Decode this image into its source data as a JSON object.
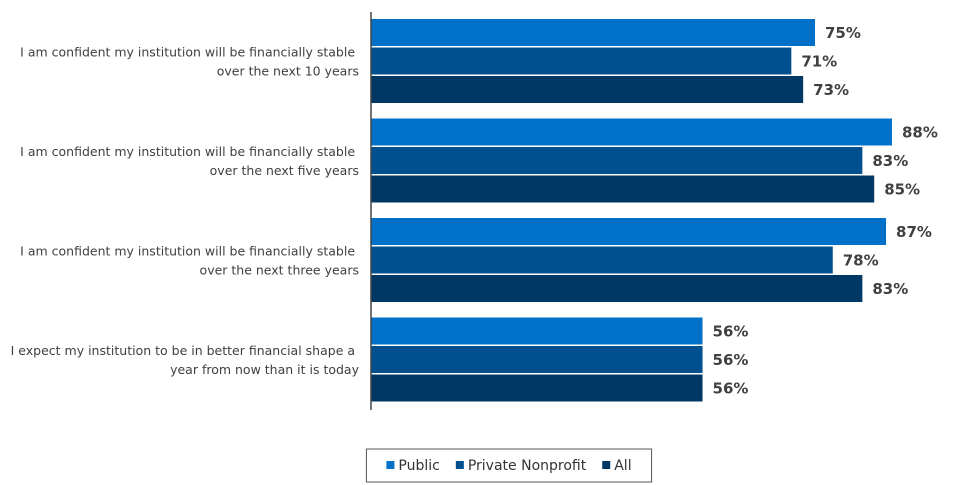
{
  "chart_data": {
    "type": "hbar",
    "categories": [
      "I am confident my institution will be financially stable over the next 10 years",
      "I am confident my institution will be financially stable over the next five years",
      "I am confident my institution will be financially stable over the next three years",
      "I expect my institution to be in better financial shape a year from now than it is today"
    ],
    "series": [
      {
        "name": "Public",
        "color": "#0070c8",
        "values": [
          75,
          88,
          87,
          56
        ],
        "value_labels": [
          "75%",
          "88%",
          "87%",
          "56%"
        ]
      },
      {
        "name": "Private Nonprofit",
        "color": "#00508f",
        "values": [
          71,
          83,
          78,
          56
        ],
        "value_labels": [
          "71%",
          "83%",
          "78%",
          "56%"
        ]
      },
      {
        "name": "All",
        "color": "#003865",
        "values": [
          73,
          85,
          83,
          56
        ],
        "value_labels": [
          "73%",
          "85%",
          "83%",
          "56%"
        ]
      }
    ],
    "xlim": [
      0,
      100
    ],
    "legend": "bottom"
  }
}
